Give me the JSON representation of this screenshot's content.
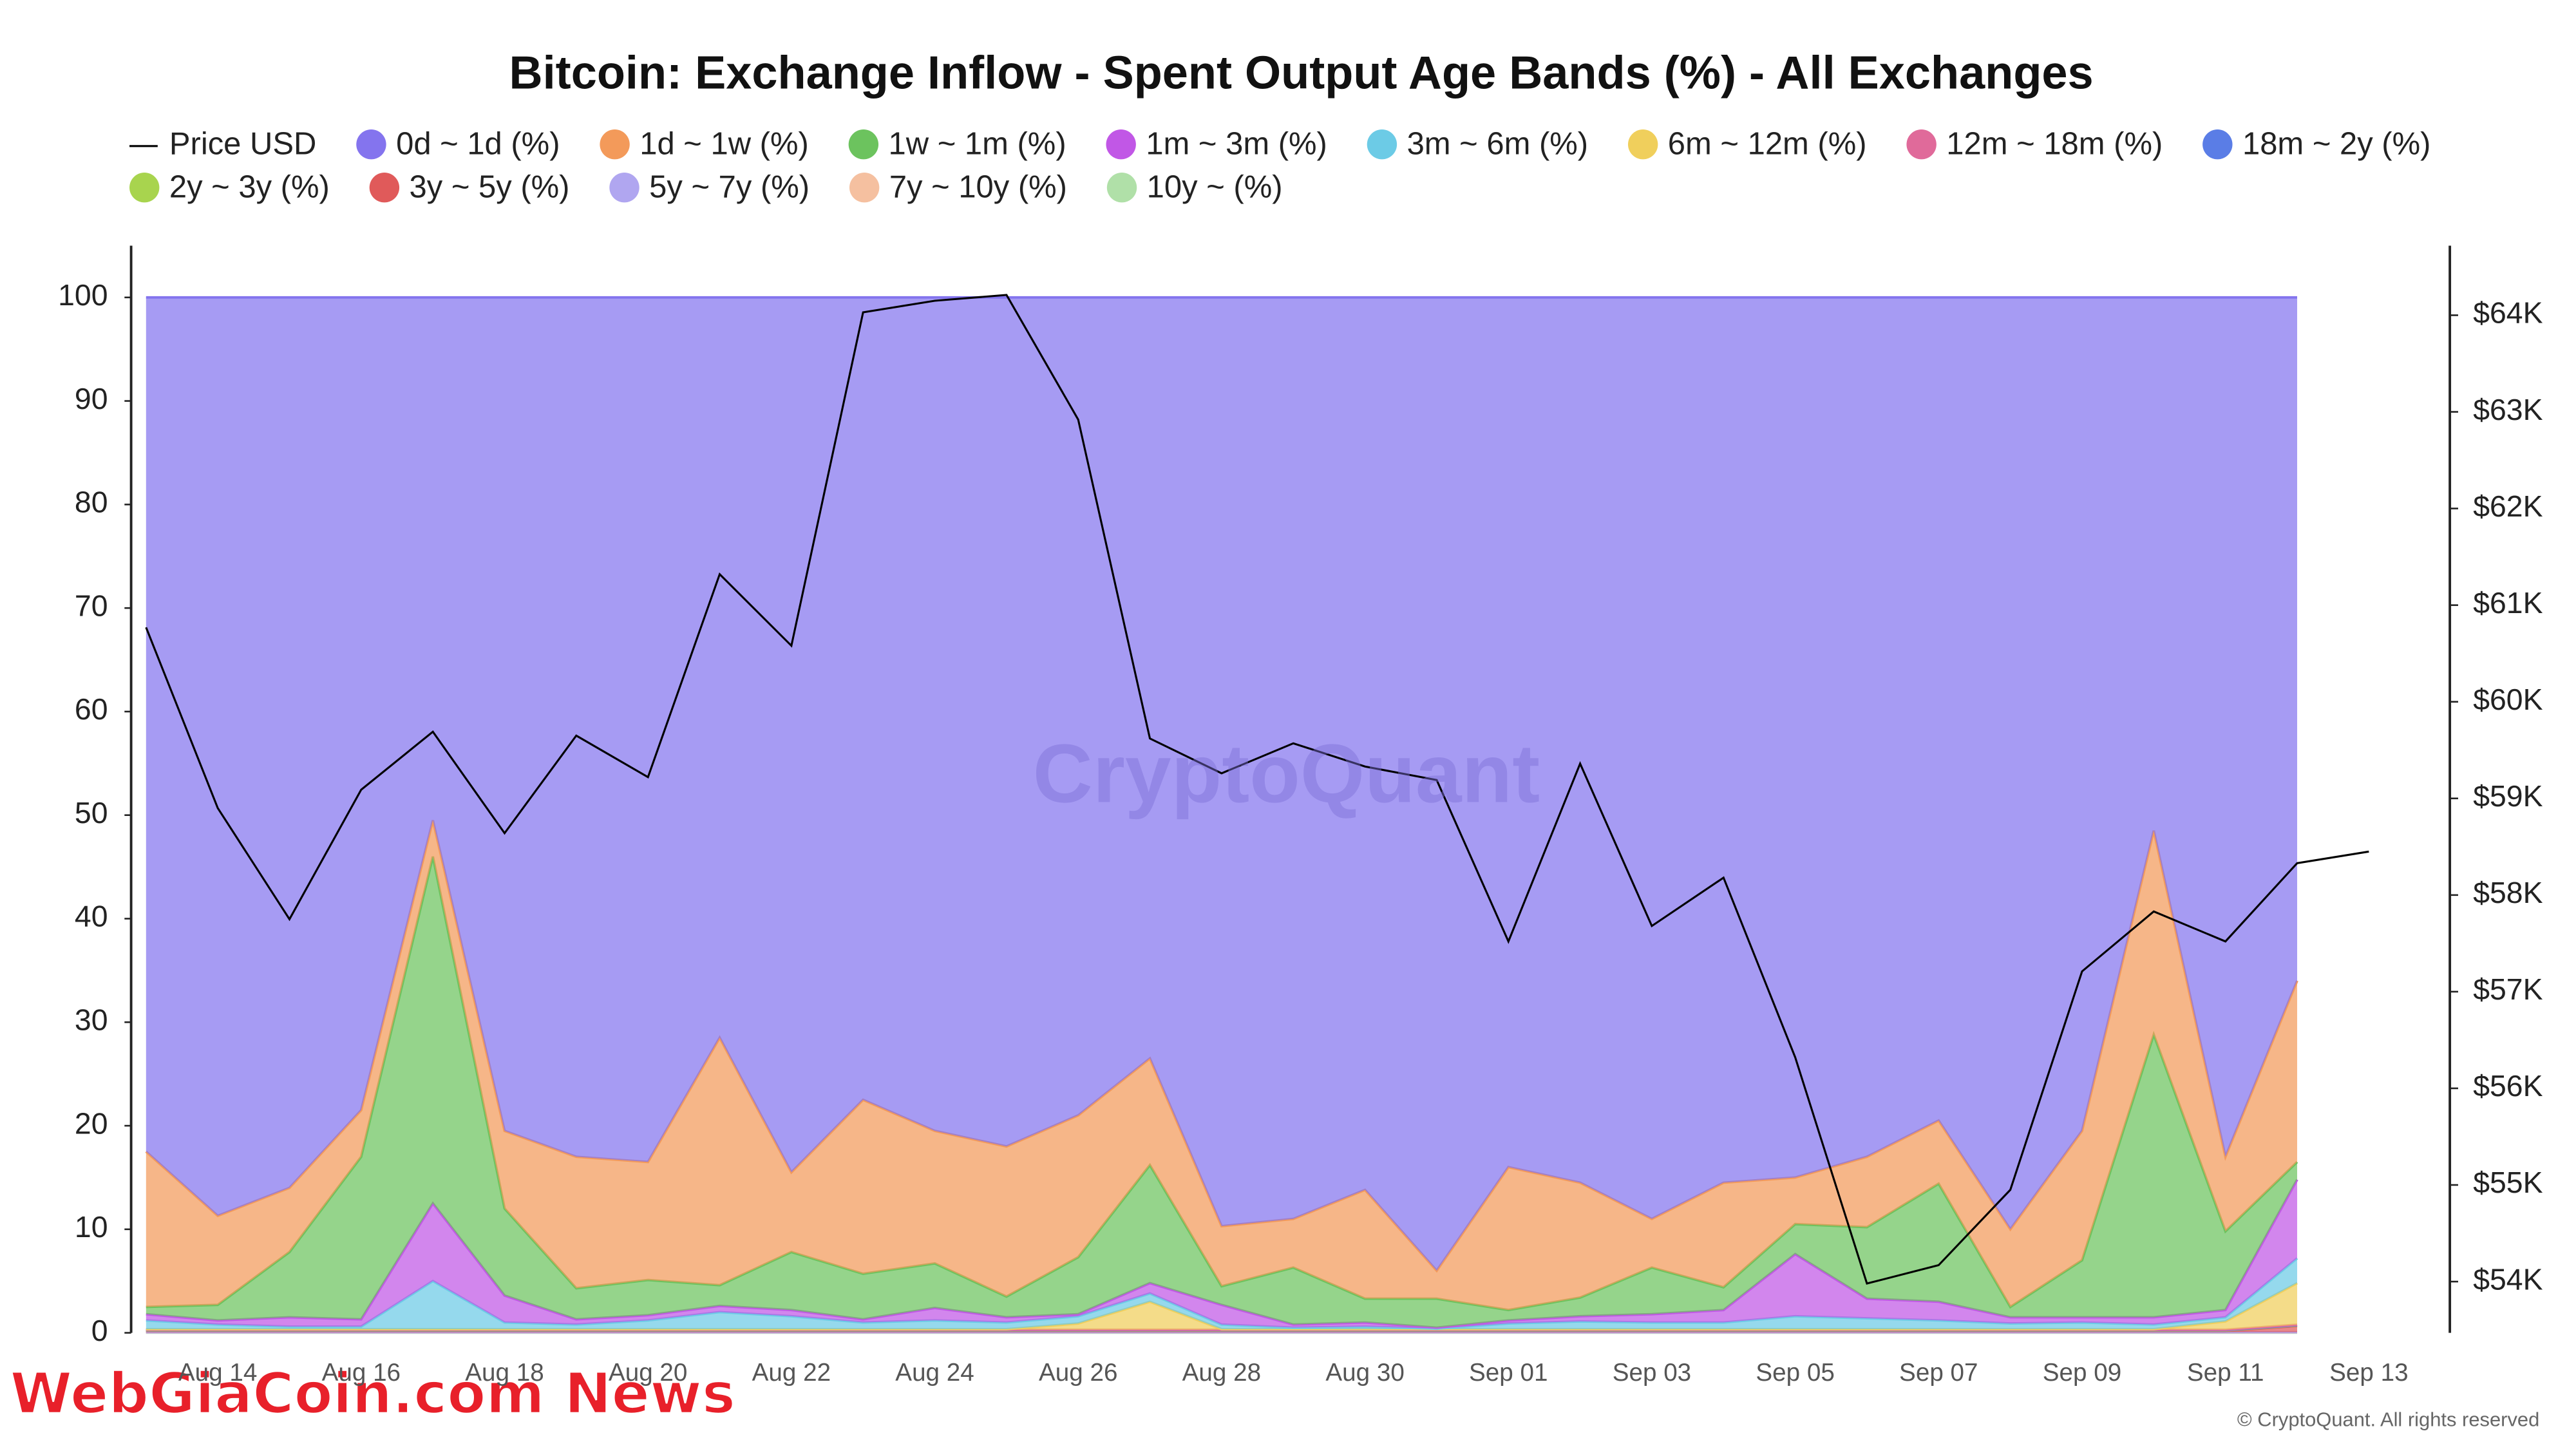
{
  "chart_data": {
    "type": "stacked_area",
    "title": "Bitcoin: Exchange Inflow - Spent Output Age Bands (%) - All Exchanges",
    "watermark": "CryptoQuant",
    "credit": "© CryptoQuant. All rights reserved",
    "overlay_text": "WebGiaCoin.com News",
    "categories": [
      null,
      "Aug 14",
      null,
      "Aug 16",
      null,
      "Aug 18",
      null,
      "Aug 20",
      null,
      "Aug 22",
      null,
      "Aug 24",
      null,
      "Aug 26",
      null,
      "Aug 28",
      null,
      "Aug 30",
      null,
      "Sep 01",
      null,
      "Sep 03",
      null,
      "Sep 05",
      null,
      "Sep 07",
      null,
      "Sep 09",
      null,
      "Sep 11",
      null,
      "Sep 13"
    ],
    "ylim": [
      0,
      105
    ],
    "yticks": [
      0,
      10,
      20,
      30,
      40,
      50,
      60,
      70,
      80,
      90,
      100
    ],
    "y2lim": [
      53470,
      64720
    ],
    "y2ticks": [
      {
        "value": 54000,
        "label": "$54K"
      },
      {
        "value": 55000,
        "label": "$55K"
      },
      {
        "value": 56000,
        "label": "$56K"
      },
      {
        "value": 57000,
        "label": "$57K"
      },
      {
        "value": 58000,
        "label": "$58K"
      },
      {
        "value": 59000,
        "label": "$59K"
      },
      {
        "value": 60000,
        "label": "$60K"
      },
      {
        "value": 61000,
        "label": "$61K"
      },
      {
        "value": 62000,
        "label": "$62K"
      },
      {
        "value": 63000,
        "label": "$63K"
      },
      {
        "value": 64000,
        "label": "$64K"
      }
    ],
    "grid": false,
    "series": [
      {
        "name": "Price USD",
        "color": "#000000",
        "axis": "y2",
        "values": [
          60770,
          58900,
          57750,
          59090,
          59690,
          58640,
          59650,
          59220,
          61320,
          60580,
          64030,
          64150,
          64210,
          62920,
          59620,
          59260,
          59570,
          59330,
          59190,
          57520,
          59360,
          57680,
          58180,
          56320,
          53980,
          54170,
          54950,
          57210,
          57830,
          57520,
          58330,
          58450
        ]
      },
      {
        "name": "0d ~ 1d (%)",
        "color": "#8474ee",
        "values": [
          82.5,
          88.7,
          86,
          78.5,
          50.5,
          80.5,
          83,
          83.5,
          71.5,
          84.5,
          77.5,
          80.5,
          82,
          79,
          73.5,
          89.7,
          89,
          86.2,
          94,
          84,
          85.5,
          89,
          85.5,
          85,
          83,
          79.5,
          90,
          80.5,
          51.5,
          83,
          66,
          null
        ]
      },
      {
        "name": "1d ~ 1w (%)",
        "color": "#f39a5a",
        "values": [
          15,
          8.6,
          6.2,
          4.5,
          3.5,
          7.5,
          12.7,
          11.4,
          23.9,
          7.7,
          16.8,
          12.8,
          14.5,
          13.7,
          10.3,
          5.8,
          4.7,
          10.5,
          2.7,
          13.8,
          11.1,
          4.7,
          10.1,
          4.5,
          6.8,
          6.1,
          7.5,
          12.5,
          19.7,
          7.2,
          17.5,
          null
        ]
      },
      {
        "name": "1w ~ 1m (%)",
        "color": "#6cc35e",
        "values": [
          0.7,
          1.5,
          6.3,
          15.7,
          33.5,
          8.4,
          3,
          3.4,
          2,
          5.6,
          4.4,
          4.3,
          2,
          5.5,
          11.4,
          1.8,
          5.5,
          2.3,
          2.8,
          1,
          1.8,
          4.5,
          2.2,
          2.9,
          6.9,
          11.4,
          1,
          5.5,
          27.3,
          7.6,
          1.7,
          null
        ]
      },
      {
        "name": "1m ~ 3m (%)",
        "color": "#c157e6",
        "values": [
          0.6,
          0.4,
          0.9,
          0.7,
          7.5,
          2.6,
          0.5,
          0.5,
          0.6,
          0.6,
          0.3,
          1.2,
          0.5,
          0.2,
          1,
          1.9,
          0.3,
          0.4,
          0.1,
          0.3,
          0.5,
          0.8,
          1.2,
          6,
          1.9,
          1.8,
          0.6,
          0.5,
          0.7,
          0.7,
          7.6,
          null
        ]
      },
      {
        "name": "3m ~ 6m (%)",
        "color": "#6ccbe6",
        "values": [
          0.85,
          0.45,
          0.25,
          0.25,
          4.65,
          0.65,
          0.45,
          0.85,
          1.65,
          1.25,
          0.65,
          0.85,
          0.65,
          0.7,
          0.8,
          0.45,
          0.15,
          0.25,
          0.05,
          0.55,
          0.75,
          0.65,
          0.65,
          1.25,
          1.05,
          0.85,
          0.55,
          0.65,
          0.45,
          0.4,
          2.4,
          null
        ]
      },
      {
        "name": "6m ~ 12m (%)",
        "color": "#f0cf5c",
        "values": [
          0.05,
          0.05,
          0.05,
          0.05,
          0.05,
          0.05,
          0.05,
          0.05,
          0.05,
          0.05,
          0.05,
          0.05,
          0.05,
          0.6,
          2.7,
          0.05,
          0.05,
          0.05,
          0.05,
          0.05,
          0.05,
          0.05,
          0.05,
          0.05,
          0.05,
          0.05,
          0.05,
          0.05,
          0.05,
          0.8,
          4.02,
          null
        ]
      },
      {
        "name": "12m ~ 18m (%)",
        "color": "#e06a9a",
        "values": [
          0.04,
          0.04,
          0.04,
          0.04,
          0.04,
          0.04,
          0.04,
          0.04,
          0.04,
          0.04,
          0.04,
          0.04,
          0.04,
          0.04,
          0.04,
          0.04,
          0.04,
          0.04,
          0.04,
          0.04,
          0.04,
          0.04,
          0.04,
          0.04,
          0.04,
          0.04,
          0.04,
          0.04,
          0.04,
          0.04,
          0.04,
          null
        ]
      },
      {
        "name": "18m ~ 2y (%)",
        "color": "#5a7de6",
        "values": [
          0.03,
          0.03,
          0.03,
          0.03,
          0.03,
          0.03,
          0.03,
          0.03,
          0.03,
          0.03,
          0.03,
          0.03,
          0.03,
          0.03,
          0.03,
          0.03,
          0.03,
          0.03,
          0.03,
          0.03,
          0.03,
          0.03,
          0.03,
          0.03,
          0.03,
          0.03,
          0.03,
          0.03,
          0.03,
          0.03,
          0.03,
          null
        ]
      },
      {
        "name": "2y ~ 3y (%)",
        "color": "#a8d44e",
        "values": [
          0.05,
          0.05,
          0.05,
          0.05,
          0.05,
          0.05,
          0.05,
          0.05,
          0.05,
          0.05,
          0.05,
          0.05,
          0.05,
          0.05,
          0.05,
          0.05,
          0.05,
          0.05,
          0.05,
          0.05,
          0.05,
          0.05,
          0.05,
          0.05,
          0.05,
          0.05,
          0.05,
          0.05,
          0.05,
          0.05,
          0.05,
          null
        ]
      },
      {
        "name": "3y ~ 5y (%)",
        "color": "#e05a5a",
        "values": [
          0.12,
          0.12,
          0.12,
          0.12,
          0.12,
          0.12,
          0.12,
          0.12,
          0.12,
          0.12,
          0.12,
          0.12,
          0.12,
          0.12,
          0.12,
          0.12,
          0.12,
          0.12,
          0.12,
          0.12,
          0.12,
          0.12,
          0.12,
          0.12,
          0.12,
          0.12,
          0.12,
          0.12,
          0.12,
          0.12,
          0.6,
          null
        ]
      },
      {
        "name": "5y ~ 7y (%)",
        "color": "#b0a6f0",
        "values": [
          0.02,
          0.02,
          0.02,
          0.02,
          0.02,
          0.02,
          0.02,
          0.02,
          0.02,
          0.02,
          0.02,
          0.02,
          0.02,
          0.02,
          0.02,
          0.02,
          0.02,
          0.02,
          0.02,
          0.02,
          0.02,
          0.02,
          0.02,
          0.02,
          0.02,
          0.02,
          0.02,
          0.02,
          0.02,
          0.02,
          0.02,
          null
        ]
      },
      {
        "name": "7y ~ 10y (%)",
        "color": "#f5c0a0",
        "values": [
          0.02,
          0.02,
          0.02,
          0.02,
          0.02,
          0.02,
          0.02,
          0.02,
          0.02,
          0.02,
          0.02,
          0.02,
          0.02,
          0.02,
          0.02,
          0.02,
          0.02,
          0.02,
          0.02,
          0.02,
          0.02,
          0.02,
          0.02,
          0.02,
          0.02,
          0.02,
          0.02,
          0.02,
          0.02,
          0.02,
          0.02,
          null
        ]
      },
      {
        "name": "10y ~ (%)",
        "color": "#b0e0a8",
        "values": [
          0.02,
          0.02,
          0.02,
          0.02,
          0.02,
          0.02,
          0.02,
          0.02,
          0.02,
          0.02,
          0.02,
          0.02,
          0.02,
          0.02,
          0.02,
          0.02,
          0.02,
          0.02,
          0.02,
          0.02,
          0.02,
          0.02,
          0.02,
          0.02,
          0.02,
          0.02,
          0.02,
          0.02,
          0.02,
          0.02,
          0.02,
          null
        ]
      }
    ]
  }
}
